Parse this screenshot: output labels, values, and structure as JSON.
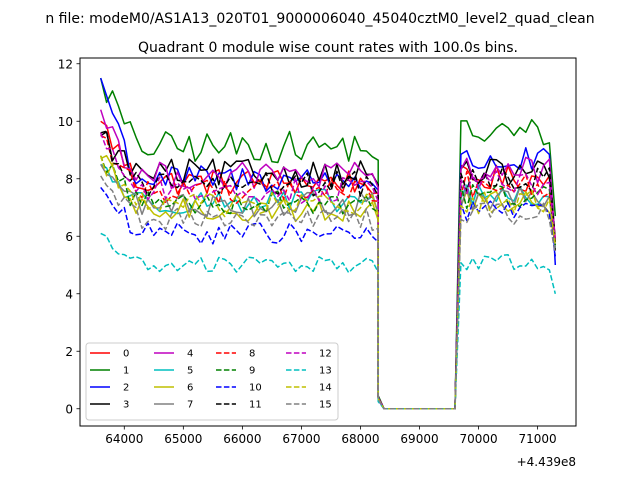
{
  "chart_data": {
    "type": "line",
    "suptitle": "n file: modeM0/AS1A13_020T01_9000006040_45040cztM0_level2_quad_clean",
    "title": "Quadrant 0 module wise count rates with 100.0s bins.",
    "xlabel": "",
    "ylabel": "",
    "x_offset_label": "+4.439e8",
    "xlim": [
      63250,
      71650
    ],
    "ylim": [
      -0.6,
      12.2
    ],
    "x_ticks": [
      64000,
      65000,
      66000,
      67000,
      68000,
      69000,
      70000,
      71000
    ],
    "y_ticks": [
      0,
      2,
      4,
      6,
      8,
      10,
      12
    ],
    "x_tick_labels": [
      "64000",
      "65000",
      "66000",
      "67000",
      "68000",
      "69000",
      "70000",
      "71000"
    ],
    "y_tick_labels": [
      "0",
      "2",
      "4",
      "6",
      "8",
      "10",
      "12"
    ],
    "grid": false,
    "legend_position": "lower-left",
    "legend_columns": 4,
    "x": {
      "segment1": {
        "start": 63600,
        "step": 100,
        "count": 48
      },
      "gap": {
        "start": 68400,
        "end": 69600,
        "step": 100
      },
      "segment2": {
        "start": 69700,
        "step": 100,
        "count": 17
      }
    },
    "series": [
      {
        "name": "0",
        "color": "#ff0000",
        "dash": "solid",
        "first": 10.0,
        "level1": 7.9,
        "level2": 8.0,
        "last": 5.9
      },
      {
        "name": "1",
        "color": "#008000",
        "dash": "solid",
        "first": 11.5,
        "level1": 9.1,
        "level2": 9.6,
        "last": 6.7
      },
      {
        "name": "2",
        "color": "#0000ff",
        "dash": "solid",
        "first": 11.5,
        "level1": 8.0,
        "level2": 8.6,
        "last": 5.0
      },
      {
        "name": "3",
        "color": "#000000",
        "dash": "solid",
        "first": 9.5,
        "level1": 8.2,
        "level2": 8.2,
        "last": 5.5
      },
      {
        "name": "4",
        "color": "#bf00bf",
        "dash": "solid",
        "first": 10.4,
        "level1": 8.1,
        "level2": 8.3,
        "last": 5.8
      },
      {
        "name": "5",
        "color": "#00bfbf",
        "dash": "solid",
        "first": 8.5,
        "level1": 7.2,
        "level2": 7.4,
        "last": 5.6
      },
      {
        "name": "6",
        "color": "#bfbf00",
        "dash": "solid",
        "first": 8.7,
        "level1": 6.9,
        "level2": 7.2,
        "last": 5.7
      },
      {
        "name": "7",
        "color": "#808080",
        "dash": "solid",
        "first": 8.5,
        "level1": 7.1,
        "level2": 7.3,
        "last": 5.6
      },
      {
        "name": "8",
        "color": "#ff0000",
        "dash": "dashed",
        "first": 9.5,
        "level1": 7.6,
        "level2": 7.8,
        "last": 5.8
      },
      {
        "name": "9",
        "color": "#008000",
        "dash": "dashed",
        "first": 8.8,
        "level1": 7.2,
        "level2": 7.4,
        "last": 5.7
      },
      {
        "name": "10",
        "color": "#0000ff",
        "dash": "dashed",
        "first": 7.7,
        "level1": 6.1,
        "level2": 6.9,
        "last": 5.3
      },
      {
        "name": "11",
        "color": "#000000",
        "dash": "dashed",
        "first": 9.6,
        "level1": 7.8,
        "level2": 8.0,
        "last": 5.8
      },
      {
        "name": "12",
        "color": "#bf00bf",
        "dash": "dashed",
        "first": 9.6,
        "level1": 7.6,
        "level2": 7.9,
        "last": 5.8
      },
      {
        "name": "13",
        "color": "#00bfbf",
        "dash": "dashed",
        "first": 6.1,
        "level1": 5.0,
        "level2": 5.1,
        "last": 4.0
      },
      {
        "name": "14",
        "color": "#bfbf00",
        "dash": "dashed",
        "first": 8.8,
        "level1": 7.1,
        "level2": 7.2,
        "last": 5.7
      },
      {
        "name": "15",
        "color": "#808080",
        "dash": "dashed",
        "first": 8.1,
        "level1": 6.6,
        "level2": 6.8,
        "last": 5.4
      }
    ]
  }
}
